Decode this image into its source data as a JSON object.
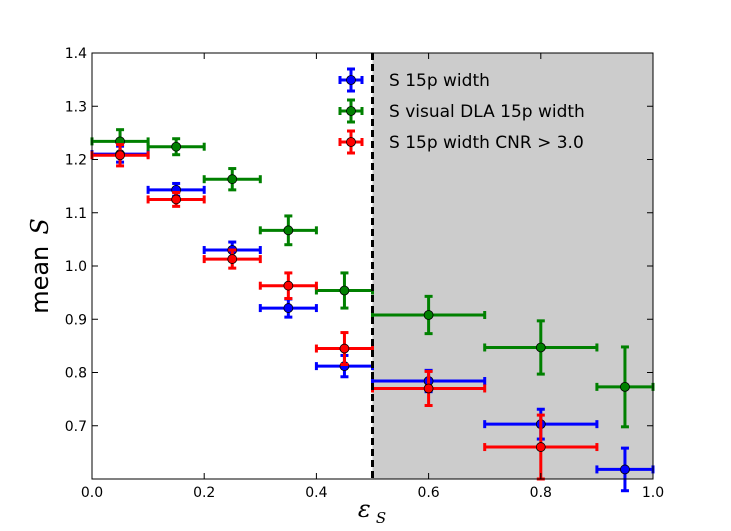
{
  "chart_data": {
    "type": "scatter",
    "xlim": [
      0.0,
      1.0
    ],
    "ylim": [
      0.6,
      1.4
    ],
    "x_ticks": [
      "0.0",
      "0.2",
      "0.4",
      "0.6",
      "0.8",
      "1.0"
    ],
    "y_ticks": [
      "0.7",
      "0.8",
      "0.9",
      "1.0",
      "1.1",
      "1.2",
      "1.3",
      "1.4"
    ],
    "ylabel_prefix": "mean",
    "ylabel_symbol": "S",
    "xlabel_symbol": "ε",
    "xlabel_subscript": "S",
    "shaded_region": {
      "x_start": 0.5,
      "x_end": 1.0,
      "color": "#cccccc"
    },
    "threshold_line": {
      "x": 0.5,
      "style": "dashed",
      "color": "#000000"
    },
    "grid": false,
    "legend_position": "top-right",
    "series": [
      {
        "name": "S 15p width",
        "color": "#0000ff",
        "points": [
          {
            "x": 0.05,
            "y": 1.21,
            "xerr": 0.05,
            "yerr": 0.015
          },
          {
            "x": 0.15,
            "y": 1.143,
            "xerr": 0.05,
            "yerr": 0.012
          },
          {
            "x": 0.25,
            "y": 1.03,
            "xerr": 0.05,
            "yerr": 0.015
          },
          {
            "x": 0.35,
            "y": 0.921,
            "xerr": 0.05,
            "yerr": 0.017
          },
          {
            "x": 0.45,
            "y": 0.812,
            "xerr": 0.05,
            "yerr": 0.02
          },
          {
            "x": 0.6,
            "y": 0.784,
            "xerr": 0.1,
            "yerr": 0.02
          },
          {
            "x": 0.8,
            "y": 0.703,
            "xerr": 0.1,
            "yerr": 0.028
          },
          {
            "x": 0.95,
            "y": 0.618,
            "xerr": 0.05,
            "yerr": 0.04
          }
        ]
      },
      {
        "name": "S visual DLA 15p width",
        "color": "#008000",
        "points": [
          {
            "x": 0.05,
            "y": 1.234,
            "xerr": 0.05,
            "yerr": 0.022
          },
          {
            "x": 0.15,
            "y": 1.224,
            "xerr": 0.05,
            "yerr": 0.015
          },
          {
            "x": 0.25,
            "y": 1.163,
            "xerr": 0.05,
            "yerr": 0.02
          },
          {
            "x": 0.35,
            "y": 1.067,
            "xerr": 0.05,
            "yerr": 0.027
          },
          {
            "x": 0.45,
            "y": 0.954,
            "xerr": 0.05,
            "yerr": 0.033
          },
          {
            "x": 0.6,
            "y": 0.908,
            "xerr": 0.1,
            "yerr": 0.035
          },
          {
            "x": 0.8,
            "y": 0.847,
            "xerr": 0.1,
            "yerr": 0.05
          },
          {
            "x": 0.95,
            "y": 0.773,
            "xerr": 0.05,
            "yerr": 0.075
          }
        ]
      },
      {
        "name": "S 15p width  CNR > 3.0",
        "color": "#ff0000",
        "points": [
          {
            "x": 0.05,
            "y": 1.208,
            "xerr": 0.05,
            "yerr": 0.02
          },
          {
            "x": 0.15,
            "y": 1.125,
            "xerr": 0.05,
            "yerr": 0.013
          },
          {
            "x": 0.25,
            "y": 1.013,
            "xerr": 0.05,
            "yerr": 0.017
          },
          {
            "x": 0.35,
            "y": 0.963,
            "xerr": 0.05,
            "yerr": 0.024
          },
          {
            "x": 0.45,
            "y": 0.845,
            "xerr": 0.05,
            "yerr": 0.03
          },
          {
            "x": 0.6,
            "y": 0.77,
            "xerr": 0.1,
            "yerr": 0.032
          },
          {
            "x": 0.8,
            "y": 0.66,
            "xerr": 0.1,
            "yerr": 0.06
          }
        ]
      }
    ]
  }
}
